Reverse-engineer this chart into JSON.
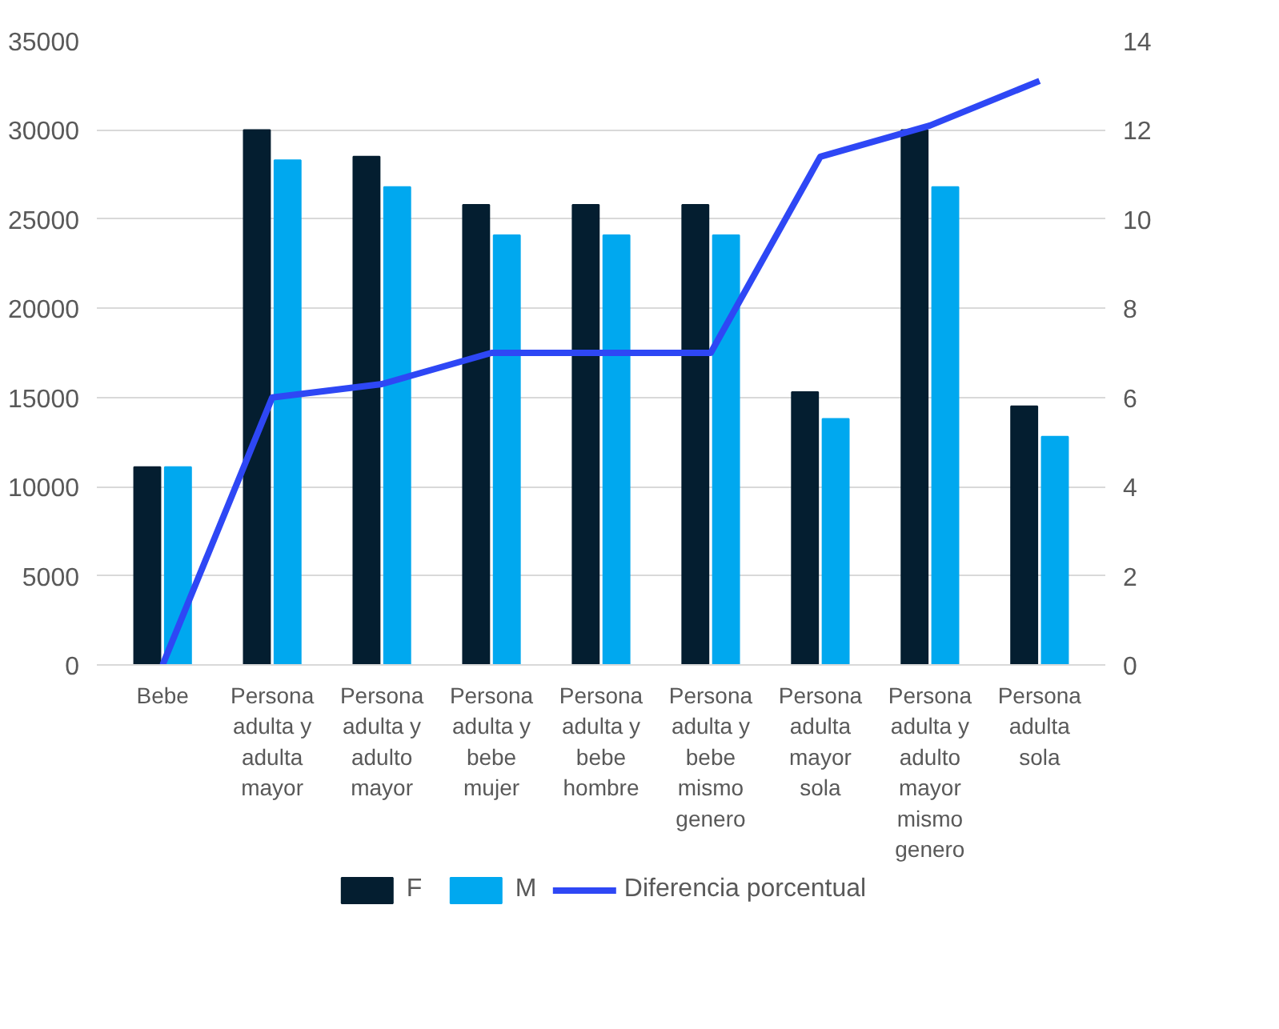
{
  "chart_data": {
    "type": "bar",
    "categories": [
      "Bebe",
      "Persona adulta y adulta mayor",
      "Persona adulta y adulto mayor",
      "Persona adulta y bebe mujer",
      "Persona adulta y bebe hombre",
      "Persona adulta y bebe mismo genero",
      "Persona adulta mayor sola",
      "Persona adulta y adulto mayor mismo genero",
      "Persona adulta sola"
    ],
    "series": [
      {
        "name": "F",
        "color": "#041e30",
        "values": [
          11100,
          30000,
          28500,
          25800,
          25800,
          25800,
          15300,
          30000,
          14500
        ]
      },
      {
        "name": "M",
        "color": "#00a8ef",
        "values": [
          11100,
          28300,
          26800,
          24100,
          24100,
          24100,
          13800,
          26800,
          12800
        ]
      },
      {
        "name": "Diferencia porcentual",
        "type": "line",
        "axis": "y2",
        "color": "#2e47f5",
        "values": [
          0,
          6.0,
          6.3,
          7.0,
          7.0,
          7.0,
          11.4,
          12.1,
          13.1
        ]
      }
    ],
    "ylim": [
      0,
      35000
    ],
    "yticks": [
      0,
      5000,
      10000,
      15000,
      20000,
      25000,
      30000,
      35000
    ],
    "y2lim": [
      0,
      14
    ],
    "y2ticks": [
      0,
      2,
      4,
      6,
      8,
      10,
      12,
      14
    ],
    "grid": "y",
    "legend": "bottom"
  }
}
